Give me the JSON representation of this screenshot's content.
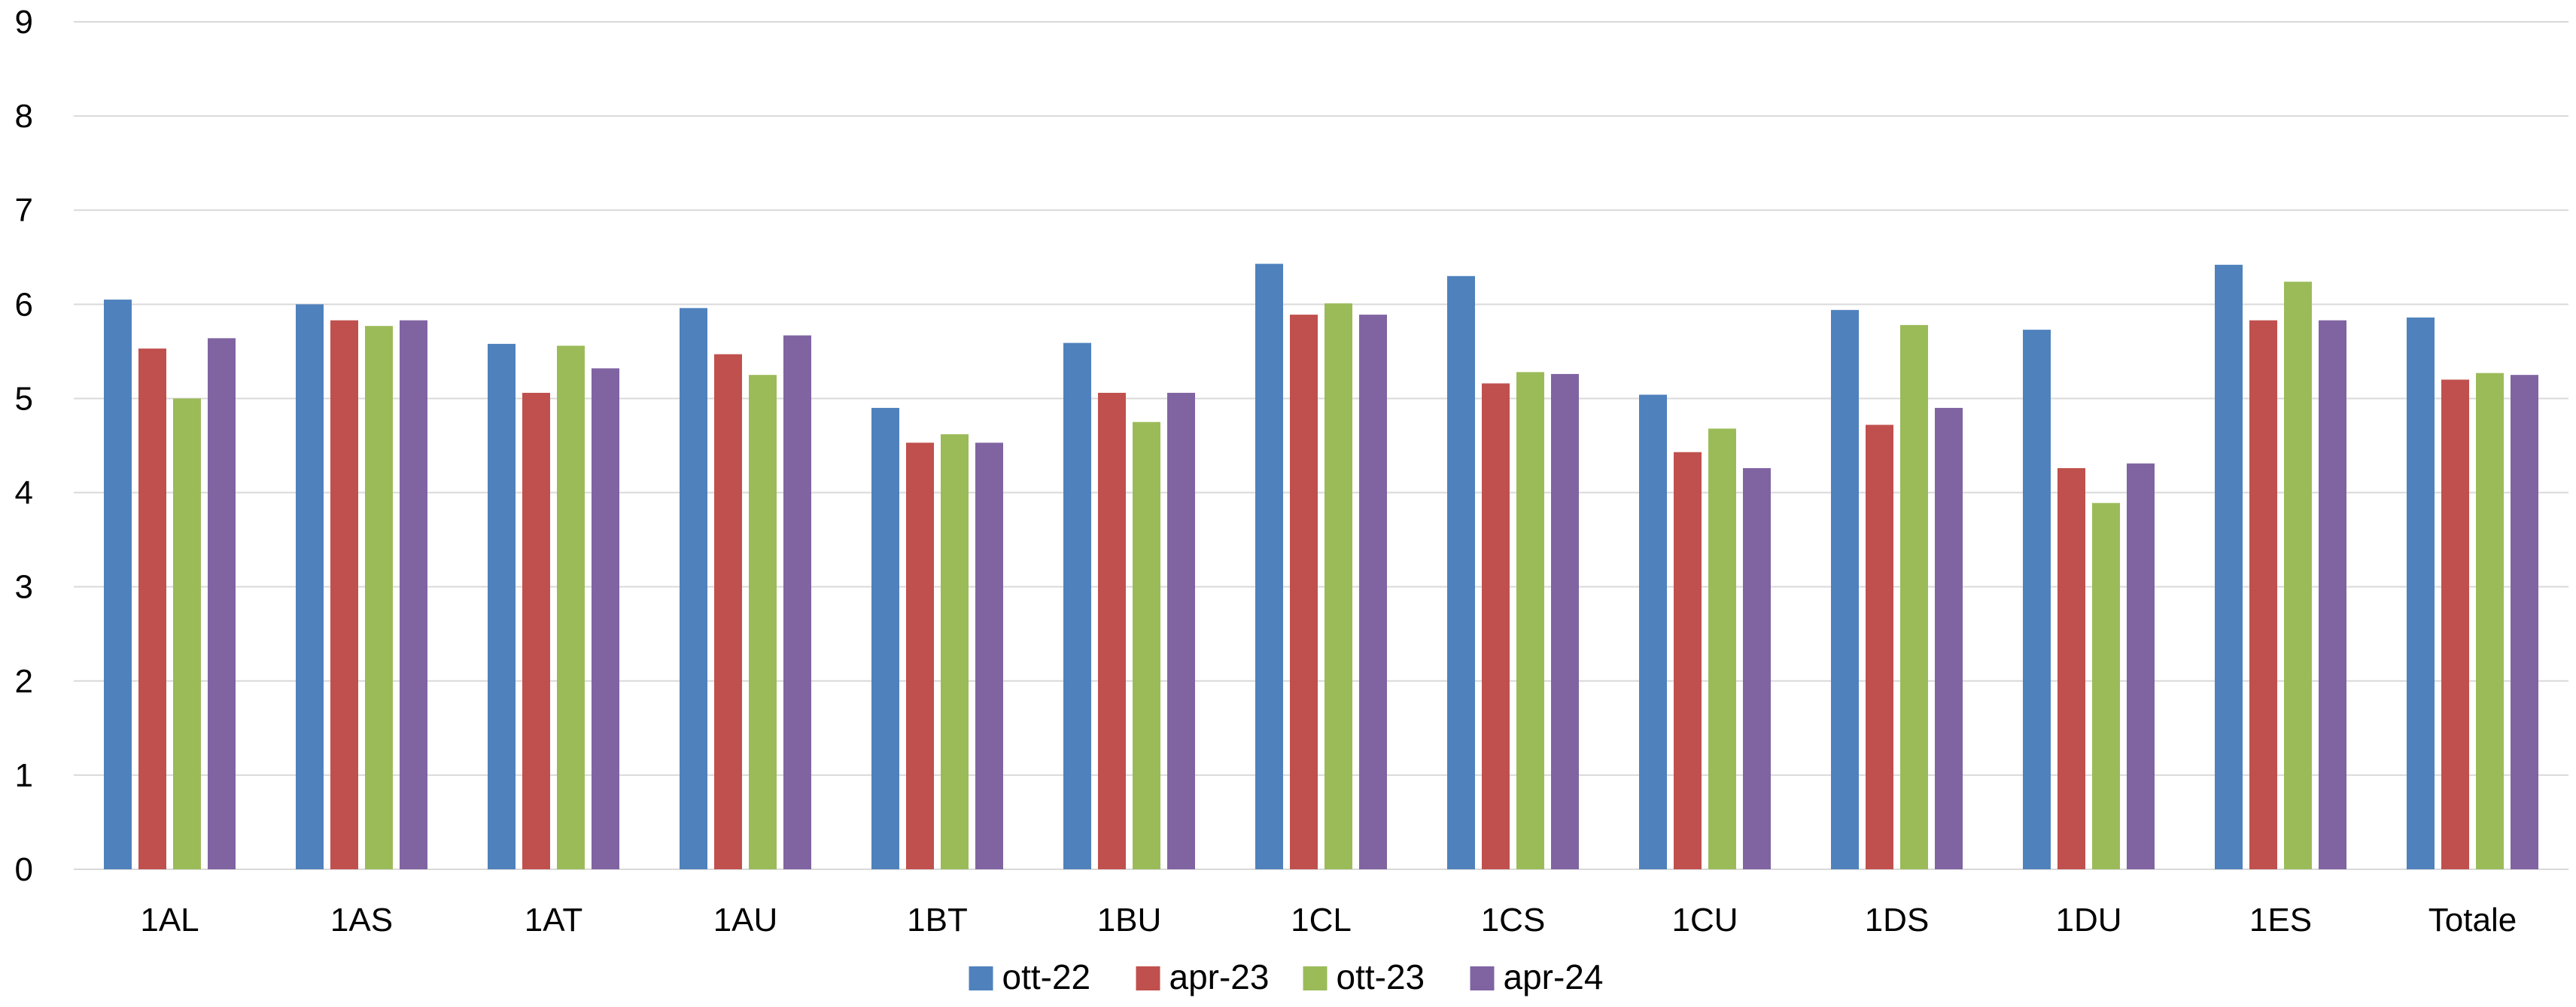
{
  "chart_data": {
    "type": "bar",
    "title": "",
    "xlabel": "",
    "ylabel": "",
    "ylim": [
      0,
      9
    ],
    "yticks": [
      "0",
      "1",
      "2",
      "3",
      "4",
      "5",
      "6",
      "7",
      "8",
      "9"
    ],
    "grid": true,
    "legend_position": "bottom",
    "categories": [
      "1AL",
      "1AS",
      "1AT",
      "1AU",
      "1BT",
      "1BU",
      "1CL",
      "1CS",
      "1CU",
      "1DS",
      "1DU",
      "1ES",
      "Totale"
    ],
    "series": [
      {
        "name": "ott-22",
        "color": "#4f81bd",
        "values": [
          6.05,
          6.0,
          5.58,
          5.96,
          4.9,
          5.59,
          6.43,
          6.3,
          5.04,
          5.94,
          5.73,
          6.42,
          5.86
        ]
      },
      {
        "name": "apr-23",
        "color": "#c0504d",
        "values": [
          5.53,
          5.83,
          5.06,
          5.47,
          4.53,
          5.06,
          5.89,
          5.16,
          4.43,
          4.72,
          4.26,
          5.83,
          5.2
        ]
      },
      {
        "name": "ott-23",
        "color": "#9bbb59",
        "values": [
          5.0,
          5.77,
          5.56,
          5.25,
          4.62,
          4.75,
          6.01,
          5.28,
          4.68,
          5.78,
          3.89,
          6.24,
          5.27
        ]
      },
      {
        "name": "apr-24",
        "color": "#8064a2",
        "values": [
          5.64,
          5.83,
          5.32,
          5.67,
          4.53,
          5.06,
          5.89,
          5.26,
          4.26,
          4.9,
          4.31,
          5.83,
          5.25
        ]
      }
    ]
  }
}
